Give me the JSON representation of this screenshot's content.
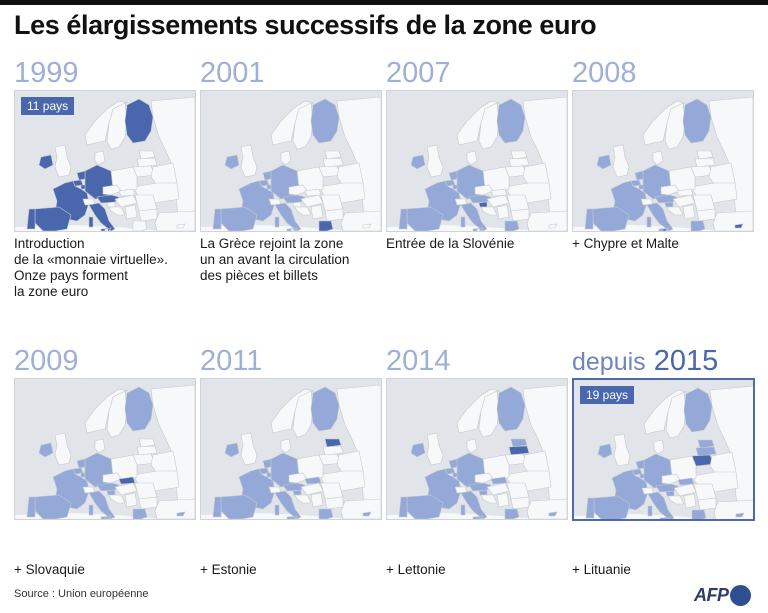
{
  "title": "Les élargissements successifs de la zone euro",
  "colors": {
    "sea": "#e1e4e8",
    "land": "#f7f8f9",
    "eurozone_existing": "#94a9d8",
    "eurozone_new": "#4a67ae",
    "border": "#c4c9cf"
  },
  "panels": [
    {
      "year": "1999",
      "caption": "Introduction\nde la «monnaie virtuelle».\nOnze pays forment\nla zone euro",
      "badge": "11 pays",
      "new": [
        "finland",
        "ireland",
        "portugal",
        "spain",
        "france",
        "belgium",
        "netherlands",
        "luxembourg",
        "germany",
        "austria",
        "italy"
      ],
      "existing": []
    },
    {
      "year": "2001",
      "caption": "La Grèce rejoint la zone\nun an avant la circulation\ndes pièces et billets",
      "new": [
        "greece"
      ],
      "existing": [
        "finland",
        "ireland",
        "portugal",
        "spain",
        "france",
        "belgium",
        "netherlands",
        "luxembourg",
        "germany",
        "austria",
        "italy"
      ]
    },
    {
      "year": "2007",
      "caption": "Entrée de la Slovénie",
      "new": [
        "slovenia"
      ],
      "existing": [
        "finland",
        "ireland",
        "portugal",
        "spain",
        "france",
        "belgium",
        "netherlands",
        "luxembourg",
        "germany",
        "austria",
        "italy",
        "greece"
      ]
    },
    {
      "year": "2008",
      "caption": "+ Chypre et Malte",
      "new": [
        "cyprus",
        "malta"
      ],
      "existing": [
        "finland",
        "ireland",
        "portugal",
        "spain",
        "france",
        "belgium",
        "netherlands",
        "luxembourg",
        "germany",
        "austria",
        "italy",
        "greece",
        "slovenia"
      ]
    },
    {
      "year": "2009",
      "caption": "+ Slovaquie",
      "new": [
        "slovakia"
      ],
      "existing": [
        "finland",
        "ireland",
        "portugal",
        "spain",
        "france",
        "belgium",
        "netherlands",
        "luxembourg",
        "germany",
        "austria",
        "italy",
        "greece",
        "slovenia",
        "cyprus",
        "malta"
      ]
    },
    {
      "year": "2011",
      "caption": "+ Estonie",
      "new": [
        "estonia"
      ],
      "existing": [
        "finland",
        "ireland",
        "portugal",
        "spain",
        "france",
        "belgium",
        "netherlands",
        "luxembourg",
        "germany",
        "austria",
        "italy",
        "greece",
        "slovenia",
        "cyprus",
        "malta",
        "slovakia"
      ]
    },
    {
      "year": "2014",
      "caption": "+ Lettonie",
      "new": [
        "latvia"
      ],
      "existing": [
        "finland",
        "ireland",
        "portugal",
        "spain",
        "france",
        "belgium",
        "netherlands",
        "luxembourg",
        "germany",
        "austria",
        "italy",
        "greece",
        "slovenia",
        "cyprus",
        "malta",
        "slovakia",
        "estonia"
      ]
    },
    {
      "year_prefix": "depuis",
      "year": "2015",
      "caption": "+ Lituanie",
      "badge": "19 pays",
      "new": [
        "lithuania"
      ],
      "existing": [
        "finland",
        "ireland",
        "portugal",
        "spain",
        "france",
        "belgium",
        "netherlands",
        "luxembourg",
        "germany",
        "austria",
        "italy",
        "greece",
        "slovenia",
        "cyprus",
        "malta",
        "slovakia",
        "estonia",
        "latvia"
      ]
    }
  ],
  "source": "Source : Union européenne",
  "logo_text": "AFP"
}
